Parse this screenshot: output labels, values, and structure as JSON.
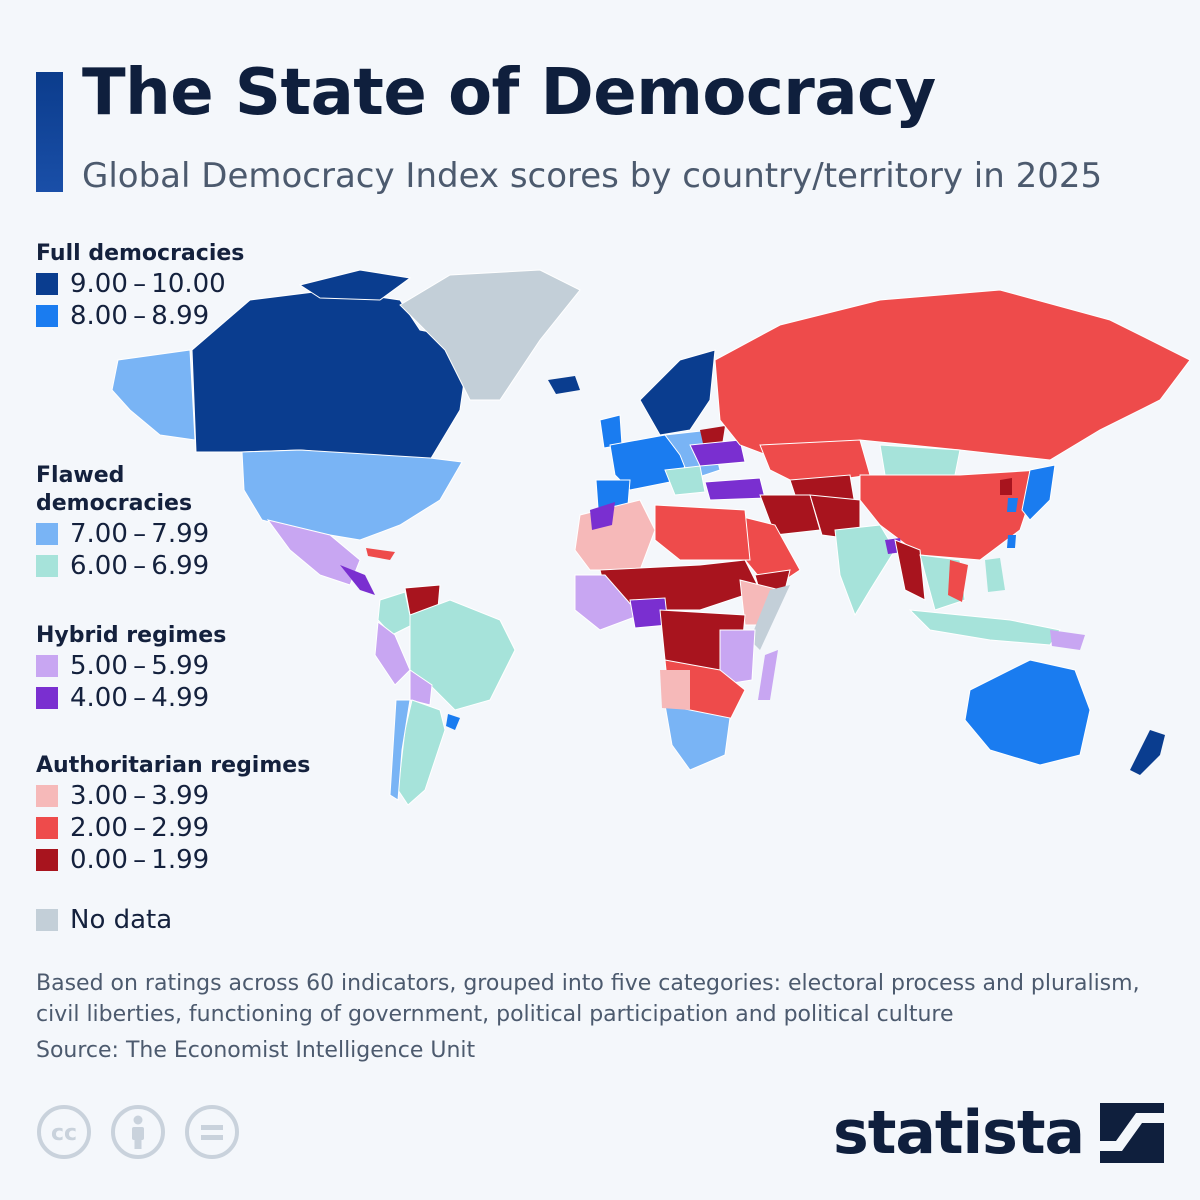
{
  "header": {
    "title": "The State of Democracy",
    "subtitle": "Global Democracy Index scores by country/territory in 2025"
  },
  "legend": {
    "groups": [
      {
        "heading": "Full democracies",
        "items": [
          {
            "label": "9.00 – 10.00",
            "color": "#0a3d8f"
          },
          {
            "label": "8.00 – 8.99",
            "color": "#1a7cf0"
          }
        ]
      },
      {
        "heading": "Flawed democracies",
        "items": [
          {
            "label": "7.00 – 7.99",
            "color": "#79b4f5"
          },
          {
            "label": "6.00 – 6.99",
            "color": "#a6e3da"
          }
        ]
      },
      {
        "heading": "Hybrid regimes",
        "items": [
          {
            "label": "5.00 – 5.99",
            "color": "#c8a6f2"
          },
          {
            "label": "4.00 – 4.99",
            "color": "#7a2fd0"
          }
        ]
      },
      {
        "heading": "Authoritarian regimes",
        "items": [
          {
            "label": "3.00 – 3.99",
            "color": "#f6b9b9"
          },
          {
            "label": "2.00 – 2.99",
            "color": "#ee4b4b"
          },
          {
            "label": "0.00 – 1.99",
            "color": "#a8141e"
          }
        ]
      }
    ],
    "no_data": {
      "label": "No data",
      "color": "#c3cfd8"
    }
  },
  "footer": {
    "note": "Based on ratings across 60 indicators, grouped into five categories: electoral process and pluralism, civil liberties, functioning of government, political participation and political culture",
    "source": "Source: The Economist Intelligence Unit",
    "license_icons": [
      "cc-icon",
      "attribution-icon",
      "no-derivatives-icon"
    ],
    "brand": "statista"
  }
}
